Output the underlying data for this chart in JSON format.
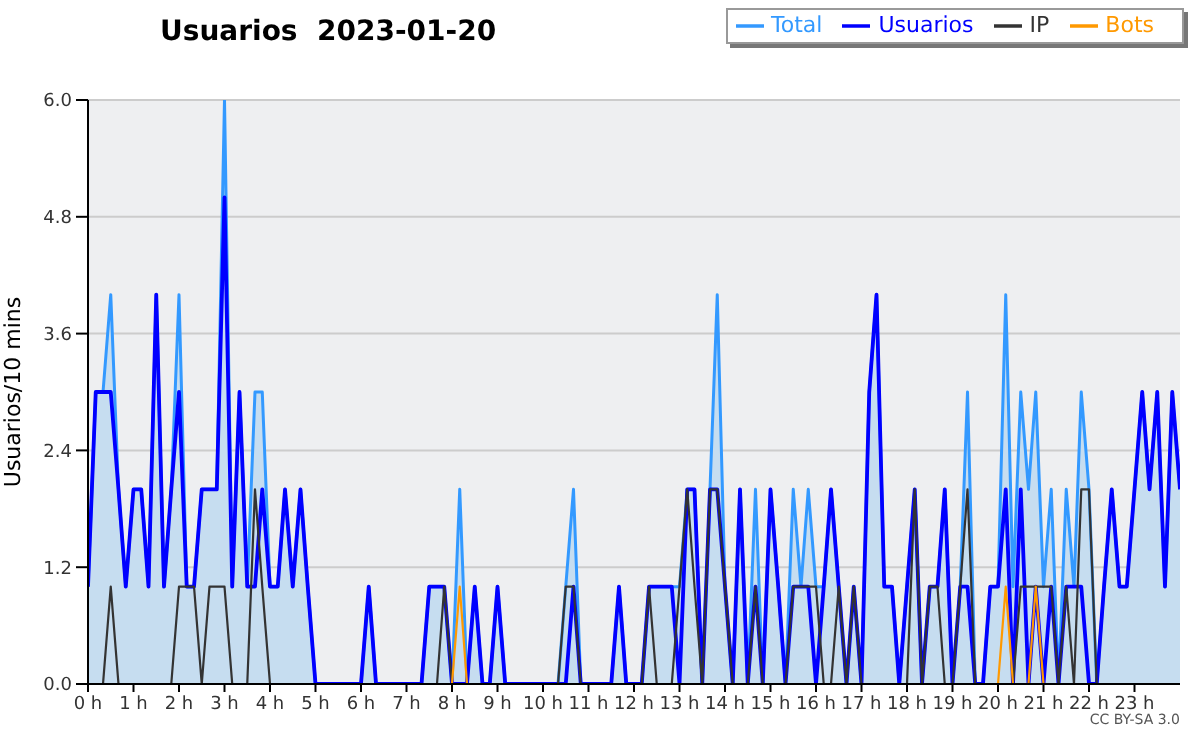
{
  "chart_data": {
    "type": "line",
    "title": "Usuarios  2023-01-20",
    "ylabel": "Usuarios/10 mins",
    "annotations": [
      "CC BY-SA 3.0"
    ],
    "x": [
      0,
      0.17,
      0.33,
      0.5,
      0.67,
      0.83,
      1,
      1.17,
      1.33,
      1.5,
      1.67,
      1.83,
      2,
      2.17,
      2.33,
      2.5,
      2.67,
      2.83,
      3,
      3.17,
      3.33,
      3.5,
      3.67,
      3.83,
      4,
      4.17,
      4.33,
      4.5,
      4.67,
      4.83,
      5,
      5.17,
      5.33,
      5.5,
      5.67,
      5.83,
      6,
      6.17,
      6.33,
      6.5,
      6.67,
      6.83,
      7,
      7.17,
      7.33,
      7.5,
      7.67,
      7.83,
      8,
      8.17,
      8.33,
      8.5,
      8.67,
      8.83,
      9,
      9.17,
      9.33,
      9.5,
      9.67,
      9.83,
      10,
      10.17,
      10.33,
      10.5,
      10.67,
      10.83,
      11,
      11.17,
      11.33,
      11.5,
      11.67,
      11.83,
      12,
      12.17,
      12.33,
      12.5,
      12.67,
      12.83,
      13,
      13.17,
      13.33,
      13.5,
      13.67,
      13.83,
      14,
      14.17,
      14.33,
      14.5,
      14.67,
      14.83,
      15,
      15.17,
      15.33,
      15.5,
      15.67,
      15.83,
      16,
      16.17,
      16.33,
      16.5,
      16.67,
      16.83,
      17,
      17.17,
      17.33,
      17.5,
      17.67,
      17.83,
      18,
      18.17,
      18.33,
      18.5,
      18.67,
      18.83,
      19,
      19.17,
      19.33,
      19.5,
      19.67,
      19.83,
      20,
      20.17,
      20.33,
      20.5,
      20.67,
      20.83,
      21,
      21.17,
      21.33,
      21.5,
      21.67,
      21.83,
      22,
      22.17,
      22.33,
      22.5,
      22.67,
      22.83,
      23,
      23.17,
      23.33,
      23.5,
      23.67,
      23.83,
      24
    ],
    "xlim": [
      0,
      24
    ],
    "xticks": [
      {
        "value": 0,
        "label": "0 h"
      },
      {
        "value": 1,
        "label": "1 h"
      },
      {
        "value": 2,
        "label": "2 h"
      },
      {
        "value": 3,
        "label": "3 h"
      },
      {
        "value": 4,
        "label": "4 h"
      },
      {
        "value": 5,
        "label": "5 h"
      },
      {
        "value": 6,
        "label": "6 h"
      },
      {
        "value": 7,
        "label": "7 h"
      },
      {
        "value": 8,
        "label": "8 h"
      },
      {
        "value": 9,
        "label": "9 h"
      },
      {
        "value": 10,
        "label": "10 h"
      },
      {
        "value": 11,
        "label": "11 h"
      },
      {
        "value": 12,
        "label": "12 h"
      },
      {
        "value": 13,
        "label": "13 h"
      },
      {
        "value": 14,
        "label": "14 h"
      },
      {
        "value": 15,
        "label": "15 h"
      },
      {
        "value": 16,
        "label": "16 h"
      },
      {
        "value": 17,
        "label": "17 h"
      },
      {
        "value": 18,
        "label": "18 h"
      },
      {
        "value": 19,
        "label": "19 h"
      },
      {
        "value": 20,
        "label": "20 h"
      },
      {
        "value": 21,
        "label": "21 h"
      },
      {
        "value": 22,
        "label": "22 h"
      },
      {
        "value": 23,
        "label": "23 h"
      }
    ],
    "ylim": [
      0,
      6
    ],
    "yticks": [
      {
        "value": 0,
        "label": "0.0"
      },
      1.2,
      2.4,
      3.6,
      4.8,
      {
        "value": 6,
        "label": "6.0"
      }
    ],
    "grid": "y",
    "legend": "top right",
    "marker": "none",
    "line_style": "solid",
    "series": [
      {
        "name": "Total",
        "type": "area",
        "color": "#3399ff",
        "values": [
          1,
          3,
          3,
          4,
          2,
          1,
          2,
          2,
          1,
          4,
          1,
          2,
          4,
          1,
          1,
          2,
          2,
          2,
          6,
          1,
          3,
          1,
          3,
          3,
          1,
          1,
          2,
          1,
          2,
          1,
          0,
          0,
          0,
          0,
          0,
          0,
          0,
          1,
          0,
          0,
          0,
          0,
          0,
          0,
          0,
          1,
          1,
          1,
          0,
          2,
          0,
          1,
          0,
          0,
          1,
          0,
          0,
          0,
          0,
          0,
          0,
          0,
          0,
          1,
          2,
          0,
          0,
          0,
          0,
          0,
          1,
          0,
          0,
          0,
          1,
          1,
          1,
          1,
          1,
          2,
          2,
          0,
          2,
          4,
          1,
          0,
          2,
          0,
          2,
          0,
          2,
          1,
          0,
          2,
          1,
          2,
          1,
          1,
          2,
          1,
          0,
          1,
          0,
          3,
          4,
          1,
          1,
          0,
          1,
          2,
          0,
          1,
          1,
          2,
          0,
          1,
          3,
          0,
          0,
          1,
          1,
          4,
          1,
          3,
          2,
          3,
          1,
          2,
          0,
          2,
          1,
          3,
          2,
          0,
          1,
          2,
          1,
          1,
          2,
          3,
          2,
          3,
          1,
          3,
          2
        ]
      },
      {
        "name": "Usuarios",
        "color": "#0000ff",
        "values": [
          1,
          3,
          3,
          3,
          2,
          1,
          2,
          2,
          1,
          4,
          1,
          2,
          3,
          1,
          1,
          2,
          2,
          2,
          5,
          1,
          3,
          1,
          1,
          2,
          1,
          1,
          2,
          1,
          2,
          1,
          0,
          0,
          0,
          0,
          0,
          0,
          0,
          1,
          0,
          0,
          0,
          0,
          0,
          0,
          0,
          1,
          1,
          1,
          0,
          0,
          0,
          1,
          0,
          0,
          1,
          0,
          0,
          0,
          0,
          0,
          0,
          0,
          0,
          0,
          1,
          0,
          0,
          0,
          0,
          0,
          1,
          0,
          0,
          0,
          1,
          1,
          1,
          1,
          0,
          2,
          2,
          0,
          2,
          2,
          1,
          0,
          2,
          0,
          1,
          0,
          2,
          1,
          0,
          1,
          1,
          1,
          0,
          1,
          2,
          1,
          0,
          1,
          0,
          3,
          4,
          1,
          1,
          0,
          1,
          2,
          0,
          1,
          1,
          2,
          0,
          1,
          1,
          0,
          0,
          1,
          1,
          2,
          0,
          2,
          0,
          1,
          0,
          1,
          0,
          1,
          1,
          1,
          0,
          0,
          1,
          2,
          1,
          1,
          2,
          3,
          2,
          3,
          1,
          3,
          2
        ]
      },
      {
        "name": "IP",
        "color": "#333333",
        "values": [
          0,
          0,
          0,
          1,
          0,
          0,
          0,
          0,
          0,
          0,
          0,
          0,
          1,
          1,
          1,
          0,
          1,
          1,
          1,
          0,
          0,
          0,
          2,
          1,
          0,
          0,
          0,
          0,
          0,
          0,
          0,
          0,
          0,
          0,
          0,
          0,
          0,
          0,
          0,
          0,
          0,
          0,
          0,
          0,
          0,
          0,
          0,
          1,
          0,
          0,
          0,
          0,
          0,
          0,
          0,
          0,
          0,
          0,
          0,
          0,
          0,
          0,
          0,
          1,
          1,
          0,
          0,
          0,
          0,
          0,
          0,
          0,
          0,
          0,
          1,
          0,
          0,
          0,
          1,
          2,
          1,
          0,
          2,
          2,
          1,
          0,
          0,
          0,
          1,
          0,
          0,
          0,
          0,
          1,
          1,
          1,
          1,
          0,
          0,
          1,
          0,
          1,
          0,
          0,
          0,
          0,
          0,
          0,
          0,
          2,
          0,
          1,
          1,
          0,
          0,
          1,
          2,
          0,
          0,
          0,
          0,
          0,
          0,
          1,
          1,
          1,
          1,
          1,
          0,
          1,
          0,
          2,
          2,
          0,
          0,
          0,
          0,
          0,
          0,
          0,
          0,
          0,
          0,
          0,
          0
        ]
      },
      {
        "name": "Bots",
        "color": "#ff9900",
        "values": [
          null,
          null,
          null,
          null,
          null,
          null,
          null,
          null,
          null,
          null,
          null,
          null,
          null,
          null,
          null,
          null,
          null,
          null,
          null,
          null,
          null,
          null,
          null,
          null,
          null,
          null,
          null,
          null,
          null,
          null,
          null,
          null,
          null,
          null,
          null,
          null,
          null,
          null,
          null,
          null,
          null,
          null,
          null,
          null,
          null,
          null,
          null,
          null,
          0,
          1,
          0,
          null,
          null,
          null,
          null,
          null,
          null,
          null,
          null,
          null,
          null,
          null,
          null,
          null,
          null,
          null,
          null,
          null,
          null,
          null,
          null,
          null,
          null,
          null,
          null,
          null,
          null,
          null,
          null,
          null,
          null,
          null,
          null,
          null,
          null,
          null,
          null,
          null,
          null,
          null,
          null,
          null,
          null,
          null,
          null,
          null,
          null,
          null,
          null,
          null,
          null,
          null,
          null,
          null,
          null,
          null,
          null,
          null,
          null,
          null,
          null,
          null,
          null,
          null,
          null,
          null,
          null,
          null,
          null,
          null,
          0,
          1,
          0,
          null,
          0,
          1,
          0,
          null,
          null,
          null,
          null,
          null,
          null,
          null,
          null,
          null,
          null,
          null,
          null,
          null,
          null,
          null,
          null,
          null,
          null
        ]
      }
    ]
  }
}
